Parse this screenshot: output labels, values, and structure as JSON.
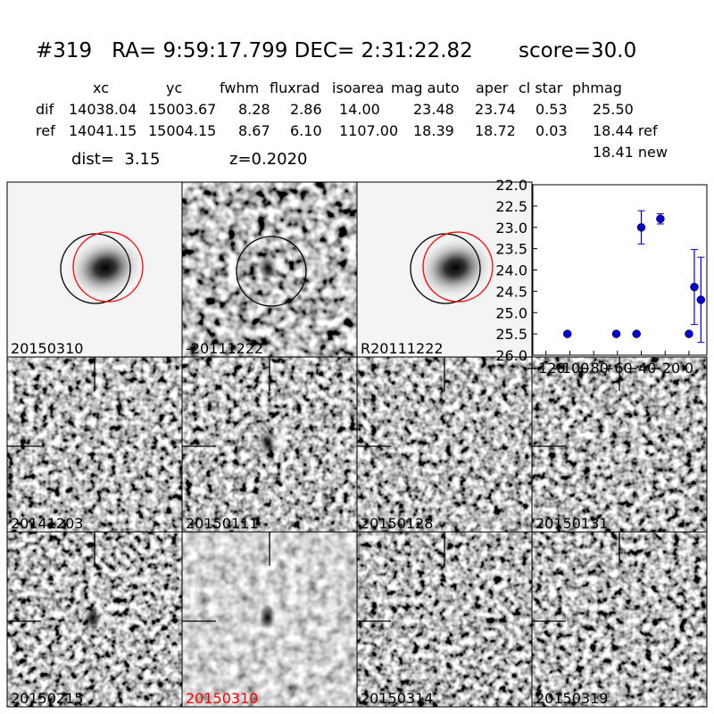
{
  "header": {
    "title": "#319   RA= 9:59:17.799 DEC= 2:31:22.82       score=30.0"
  },
  "table": {
    "columns": [
      "xc",
      "yc",
      "fwhm",
      "fluxrad",
      "isoarea",
      "mag auto",
      "aper",
      "cl star",
      "phmag"
    ],
    "rows": [
      [
        "dif",
        "14038.04",
        "15003.67",
        "8.28",
        "2.86",
        "14.00",
        "23.48",
        "23.74",
        "0.53",
        "25.50"
      ],
      [
        "ref",
        "14041.15",
        "15004.15",
        "8.67",
        "6.10",
        "1107.00",
        "18.39",
        "18.72",
        "0.03",
        "18.44 ref"
      ]
    ],
    "extra": "18.41 new",
    "dist": "dist=  3.15",
    "z": "z=0.2020"
  },
  "panels": [
    {
      "label": "20150310",
      "color": "#000000"
    },
    {
      "label": "-20111222",
      "color": "#000000"
    },
    {
      "label": "R20111222",
      "color": "#000000"
    },
    {
      "label": "20141203",
      "color": "#000000"
    },
    {
      "label": "20150111",
      "color": "#000000"
    },
    {
      "label": "20150128",
      "color": "#000000"
    },
    {
      "label": "20150131",
      "color": "#000000"
    },
    {
      "label": "20150215",
      "color": "#000000"
    },
    {
      "label": "20150310",
      "color": "#ff0000"
    },
    {
      "label": "20150314",
      "color": "#000000"
    },
    {
      "label": "20150319",
      "color": "#000000"
    }
  ],
  "chart_data": {
    "type": "scatter",
    "color": "#0000cc",
    "x": [
      -102,
      -61,
      -44,
      -40,
      -24,
      0,
      4.5,
      10
    ],
    "values": [
      25.5,
      25.5,
      25.5,
      23.0,
      22.8,
      25.5,
      24.4,
      24.7
    ],
    "errors": [
      null,
      null,
      null,
      0.39,
      0.12,
      null,
      0.88,
      1.0
    ],
    "xlim": [
      -131,
      15
    ],
    "ylim": [
      26.0,
      22.0
    ],
    "xticks": [
      {
        "value": -120,
        "label": "−120"
      },
      {
        "value": -100,
        "label": "−100"
      },
      {
        "value": -80,
        "label": "−80"
      },
      {
        "value": -60,
        "label": "−60"
      },
      {
        "value": -40,
        "label": "−40"
      },
      {
        "value": -20,
        "label": "−20"
      },
      0
    ],
    "yticks": [
      {
        "value": 22.0,
        "label": "22.0"
      },
      {
        "value": 22.5,
        "label": "22.5"
      },
      {
        "value": 23.0,
        "label": "23.0"
      },
      {
        "value": 23.5,
        "label": "23.5"
      },
      {
        "value": 24.0,
        "label": "24.0"
      },
      {
        "value": 24.5,
        "label": "24.5"
      },
      {
        "value": 25.0,
        "label": "25.0"
      },
      {
        "value": 25.5,
        "label": "25.5"
      },
      {
        "value": 26.0,
        "label": "26.0"
      }
    ]
  }
}
